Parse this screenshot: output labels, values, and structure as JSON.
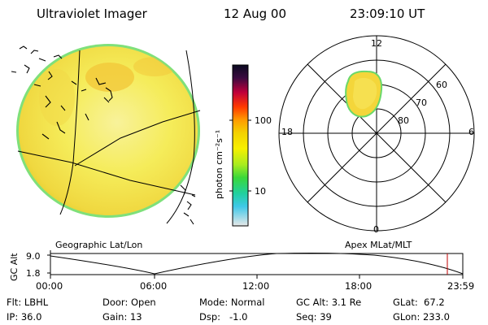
{
  "header": {
    "title": "Ultraviolet Imager",
    "date": "12 Aug 00",
    "time": "23:09:10 UT"
  },
  "colorbar": {
    "label": "photon cm⁻²s⁻¹",
    "ticks": [
      "100",
      "10"
    ]
  },
  "panels": {
    "left_label": "Geographic Lat/Lon",
    "right_label": "Apex MLat/MLT"
  },
  "polar": {
    "mlt_labels": [
      "12",
      "18",
      "6",
      "0"
    ],
    "lat_labels": [
      "60",
      "70",
      "80"
    ]
  },
  "orbit": {
    "axis_label": "GC Alt",
    "y_ticks": [
      "9.0",
      "1.8"
    ],
    "x_ticks": [
      "00:00",
      "06:00",
      "12:00",
      "18:00",
      "23:59"
    ]
  },
  "footer": {
    "filter": "Flt: LBHL",
    "ip": "IP: 36.0",
    "door": "Door: Open",
    "gain": "Gain: 13",
    "mode": "Mode: Normal",
    "dsp": "Dsp:   -1.0",
    "gcalt": "GC Alt: 3.1 Re",
    "seq": "Seq: 39",
    "glat": "GLat:  67.2",
    "glon": "GLon: 233.0"
  },
  "colors": {
    "disk_fill": "#f5ec5a",
    "disk_bright": "#f6d23a",
    "disk_edge": "#7fe07a",
    "auroral_oval": "#f4d63a",
    "marker": "#c00000"
  }
}
